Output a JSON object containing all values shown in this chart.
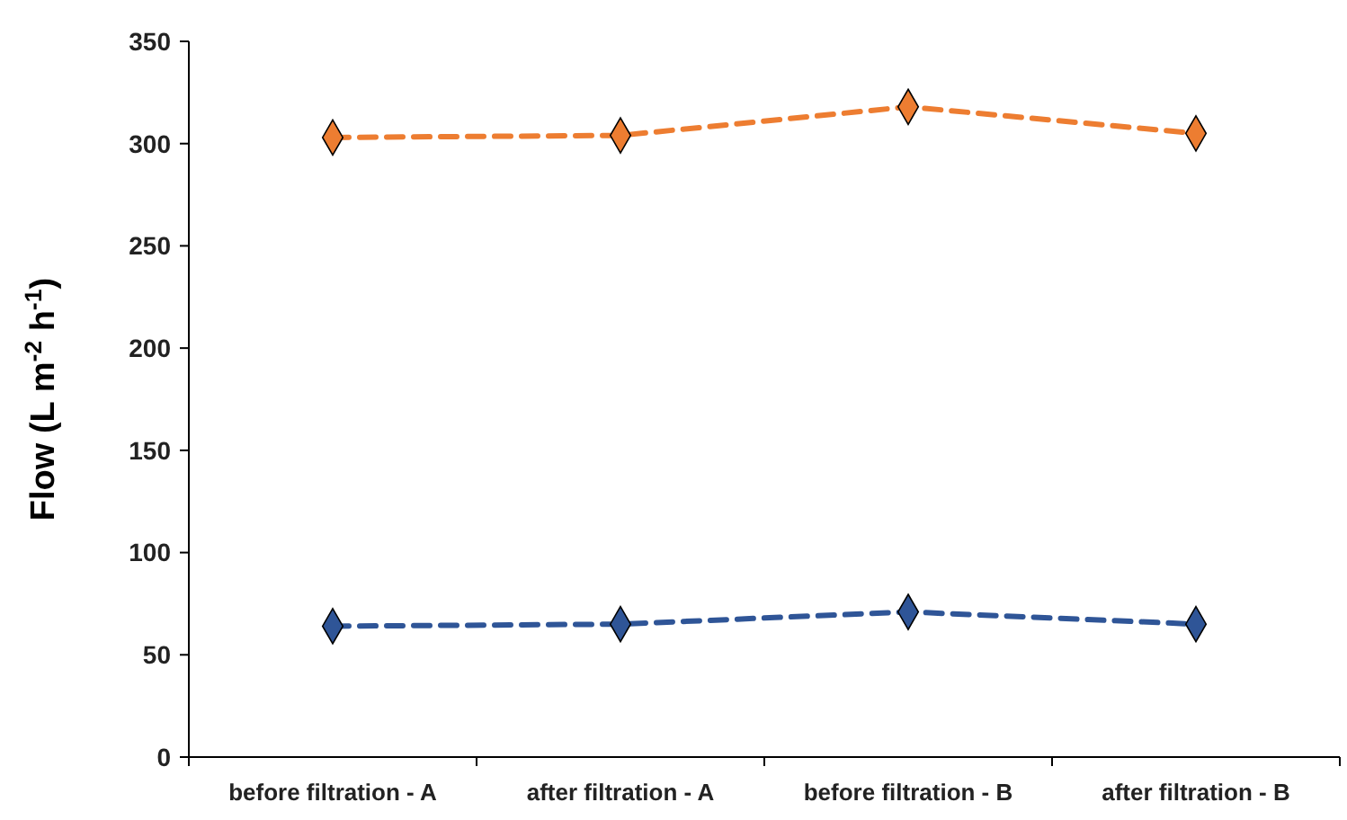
{
  "chart_data": {
    "type": "line",
    "ylabel": "Flow (L m$^{-2}$ h$^{-1}$)",
    "categories": [
      "before filtration - A",
      "after filtration - A",
      "before filtration - B",
      "after filtration - B"
    ],
    "series": [
      {
        "color": "#ed7d31",
        "values": [
          303,
          304,
          318,
          305
        ]
      },
      {
        "color": "#2f5597",
        "values": [
          64,
          65,
          71,
          65
        ]
      }
    ],
    "ylim": [
      0,
      350
    ],
    "yticks": [
      0,
      50,
      100,
      150,
      200,
      250,
      300,
      350
    ],
    "grid": false,
    "marker": "diamond",
    "line_style": "dashed"
  }
}
